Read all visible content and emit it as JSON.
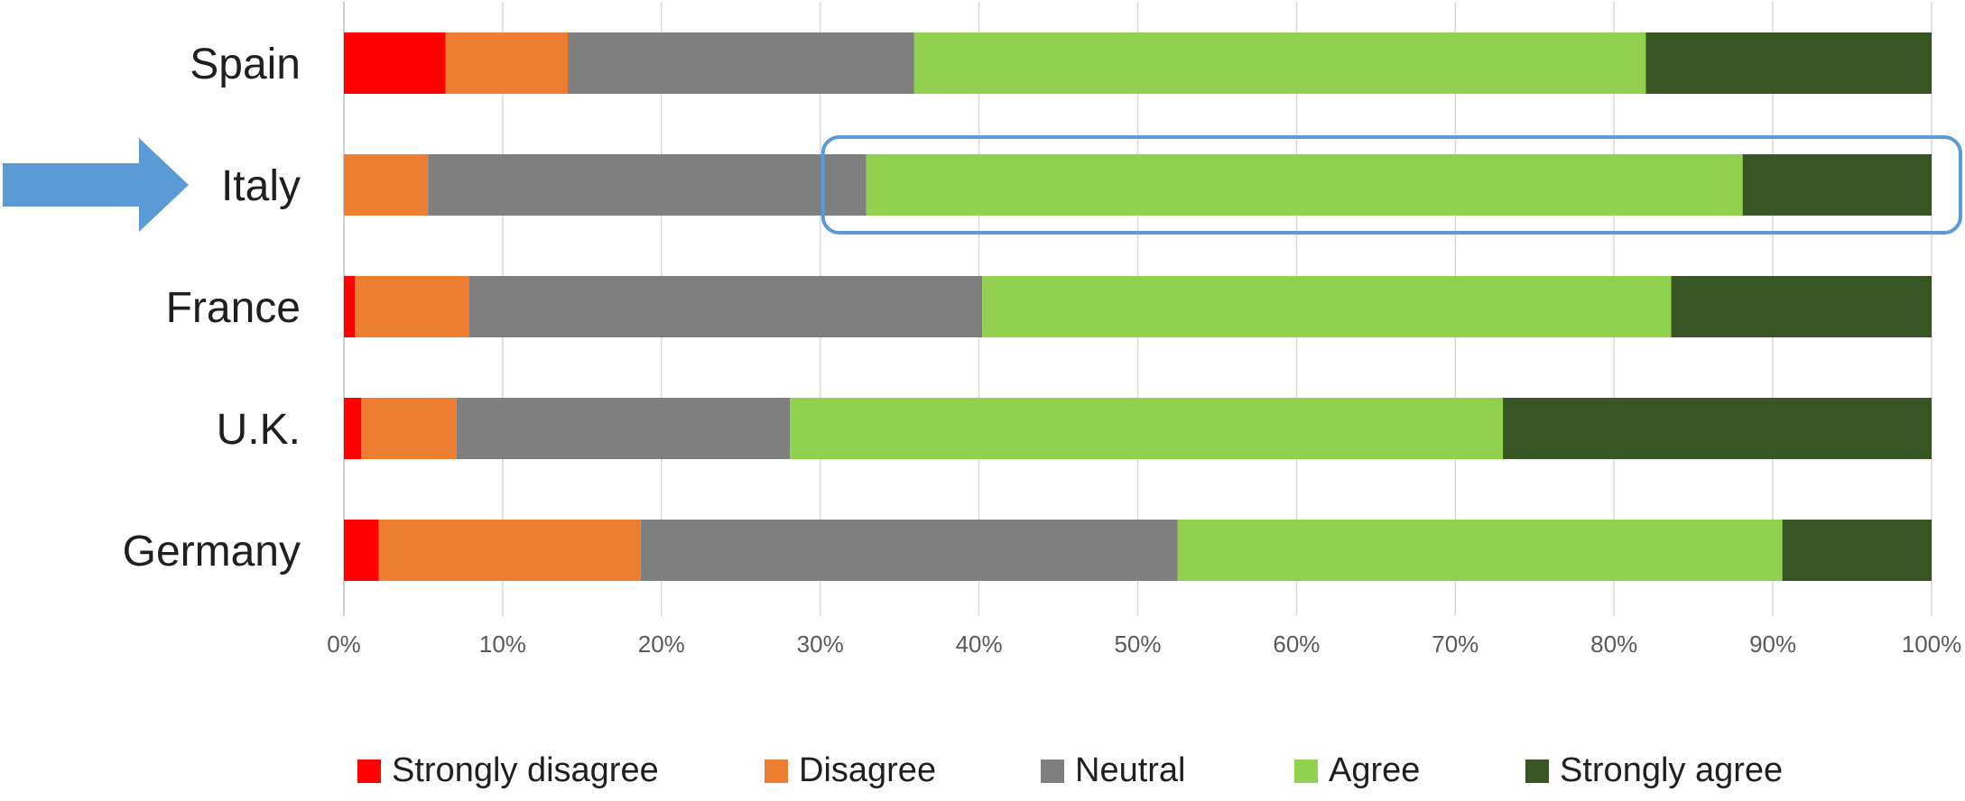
{
  "chart_data": {
    "type": "bar",
    "orientation": "horizontal",
    "stacked": "percent",
    "categories": [
      "Spain",
      "Italy",
      "France",
      "U.K.",
      "Germany"
    ],
    "series": [
      {
        "name": "Strongly disagree",
        "color": "#ff0000",
        "values": [
          6.4,
          0,
          0.7,
          1.1,
          2.2
        ]
      },
      {
        "name": "Disagree",
        "color": "#ed7d31",
        "values": [
          7.7,
          5.3,
          7.2,
          6.0,
          16.5
        ]
      },
      {
        "name": "Neutral",
        "color": "#7f7f7f",
        "values": [
          21.8,
          27.6,
          32.3,
          21.0,
          33.8
        ]
      },
      {
        "name": "Agree",
        "color": "#92d050",
        "values": [
          46.1,
          55.2,
          43.4,
          44.9,
          38.1
        ]
      },
      {
        "name": "Strongly agree",
        "color": "#375623",
        "values": [
          18.0,
          11.9,
          16.4,
          27.0,
          9.4
        ]
      }
    ],
    "xlim": [
      0,
      100
    ],
    "x_ticks": [
      "0%",
      "10%",
      "20%",
      "30%",
      "40%",
      "50%",
      "60%",
      "70%",
      "80%",
      "90%",
      "100%"
    ],
    "grid": "vertical",
    "legend_position": "bottom",
    "annotations": [
      {
        "type": "arrow",
        "color": "#5b9bd5",
        "points_to": "Italy"
      },
      {
        "type": "rounded-box",
        "color": "#5b9bd5",
        "category": "Italy",
        "series": [
          "Agree",
          "Strongly agree"
        ]
      }
    ]
  }
}
